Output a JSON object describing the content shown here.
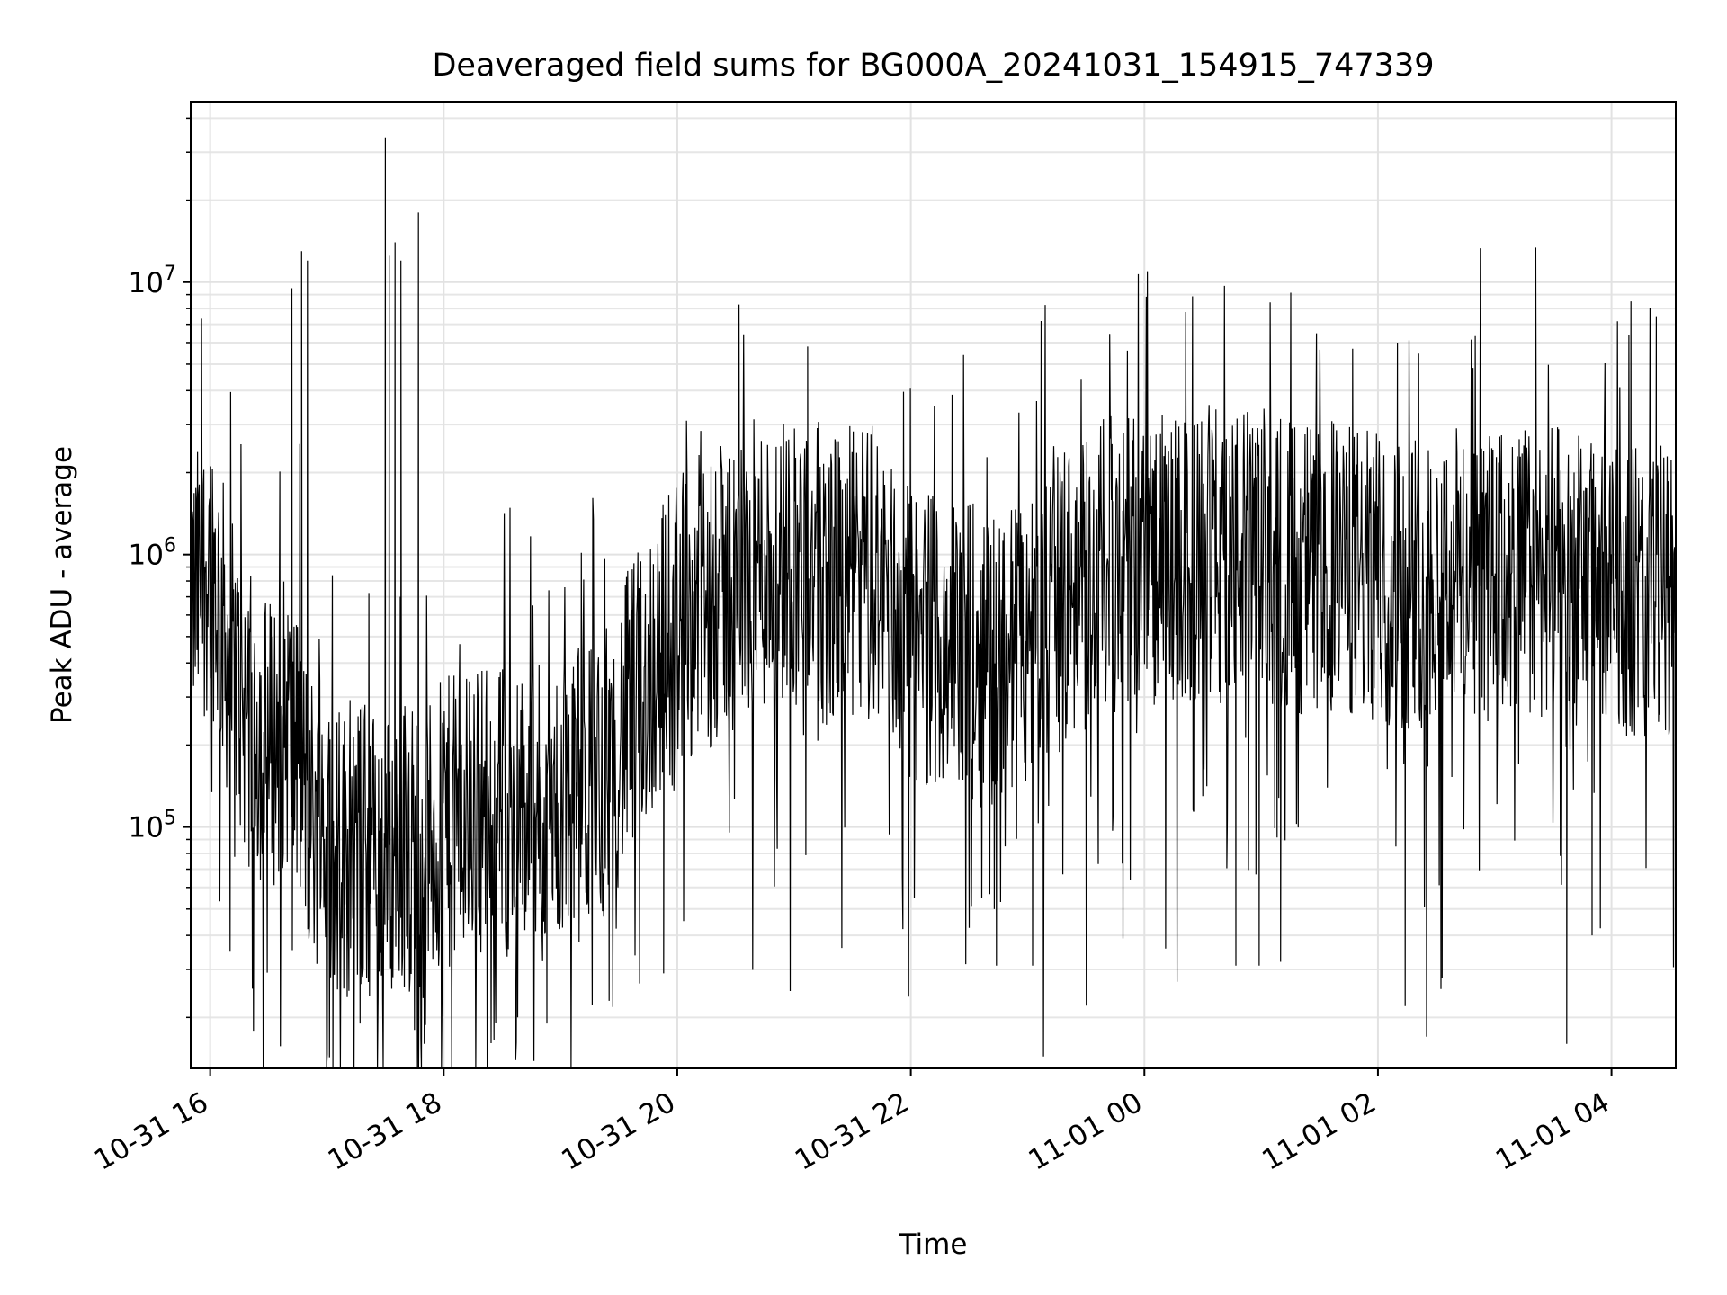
{
  "chart_data": {
    "type": "line",
    "title": "Deaveraged field sums for BG000A_20241031_154915_747339",
    "xlabel": "Time",
    "ylabel": "Peak ADU - average",
    "xlim": [
      "2024-10-31 15:50",
      "2024-11-01 04:33"
    ],
    "ylim": [
      13000,
      46000000
    ],
    "yscale": "log",
    "grid": true,
    "xticks": [
      {
        "value": "2024-10-31 16:00",
        "label": "10-31 16"
      },
      {
        "value": "2024-10-31 18:00",
        "label": "10-31 18"
      },
      {
        "value": "2024-10-31 20:00",
        "label": "10-31 20"
      },
      {
        "value": "2024-10-31 22:00",
        "label": "10-31 22"
      },
      {
        "value": "2024-11-01 00:00",
        "label": "11-01 00"
      },
      {
        "value": "2024-11-01 02:00",
        "label": "11-01 02"
      },
      {
        "value": "2024-11-01 04:00",
        "label": "11-01 04"
      }
    ],
    "yticks": [
      {
        "value": 100000,
        "base": "10",
        "exp": "5"
      },
      {
        "value": 1000000,
        "base": "10",
        "exp": "6"
      },
      {
        "value": 10000000,
        "base": "10",
        "exp": "7"
      }
    ],
    "series": [
      {
        "color": "#000000",
        "points": [
          [
            "2024-10-31 15:50",
            600000
          ],
          [
            "2024-10-31 16:00",
            1000000
          ],
          [
            "2024-10-31 16:10",
            400000
          ],
          [
            "2024-10-31 16:20",
            250000
          ],
          [
            "2024-10-31 16:30",
            200000
          ],
          [
            "2024-10-31 16:40",
            250000
          ],
          [
            "2024-10-31 16:50",
            120000
          ],
          [
            "2024-10-31 17:00",
            90000
          ],
          [
            "2024-10-31 17:10",
            80000
          ],
          [
            "2024-10-31 17:20",
            85000
          ],
          [
            "2024-10-31 17:30",
            75000
          ],
          [
            "2024-10-31 17:40",
            90000
          ],
          [
            "2024-10-31 17:50",
            80000
          ],
          [
            "2024-10-31 18:00",
            100000
          ],
          [
            "2024-10-31 18:20",
            120000
          ],
          [
            "2024-10-31 18:40",
            110000
          ],
          [
            "2024-10-31 19:00",
            120000
          ],
          [
            "2024-10-31 19:20",
            150000
          ],
          [
            "2024-10-31 19:40",
            300000
          ],
          [
            "2024-10-31 20:00",
            600000
          ],
          [
            "2024-10-31 20:20",
            700000
          ],
          [
            "2024-10-31 20:40",
            900000
          ],
          [
            "2024-10-31 21:00",
            1000000
          ],
          [
            "2024-10-31 21:20",
            800000
          ],
          [
            "2024-10-31 21:40",
            900000
          ],
          [
            "2024-10-31 22:00",
            500000
          ],
          [
            "2024-10-31 22:20",
            500000
          ],
          [
            "2024-10-31 22:40",
            400000
          ],
          [
            "2024-10-31 23:00",
            500000
          ],
          [
            "2024-10-31 23:20",
            700000
          ],
          [
            "2024-10-31 23:40",
            900000
          ],
          [
            "2024-11-01 00:00",
            1000000
          ],
          [
            "2024-11-01 00:20",
            900000
          ],
          [
            "2024-11-01 00:40",
            1000000
          ],
          [
            "2024-11-01 01:00",
            1000000
          ],
          [
            "2024-11-01 01:20",
            900000
          ],
          [
            "2024-11-01 01:40",
            900000
          ],
          [
            "2024-11-01 02:00",
            800000
          ],
          [
            "2024-11-01 02:20",
            800000
          ],
          [
            "2024-11-01 02:40",
            900000
          ],
          [
            "2024-11-01 03:00",
            800000
          ],
          [
            "2024-11-01 03:20",
            900000
          ],
          [
            "2024-11-01 03:40",
            800000
          ],
          [
            "2024-11-01 04:00",
            800000
          ],
          [
            "2024-11-01 04:20",
            700000
          ],
          [
            "2024-11-01 04:33",
            800000
          ]
        ],
        "spikes": [
          [
            "2024-10-31 16:42",
            9500000
          ],
          [
            "2024-10-31 16:47",
            13000000
          ],
          [
            "2024-10-31 16:50",
            12000000
          ],
          [
            "2024-10-31 17:30",
            34000000
          ],
          [
            "2024-10-31 17:32",
            12500000
          ],
          [
            "2024-10-31 17:35",
            14000000
          ],
          [
            "2024-10-31 17:38",
            12000000
          ],
          [
            "2024-10-31 17:47",
            18000000
          ],
          [
            "2024-10-31 21:07",
            5800000
          ],
          [
            "2024-11-01 01:47",
            5700000
          ],
          [
            "2024-11-01 02:10",
            6000000
          ],
          [
            "2024-11-01 04:10",
            8500000
          ],
          [
            "2024-11-01 04:23",
            7500000
          ]
        ],
        "dips": [
          [
            "2024-10-31 17:50",
            16000
          ],
          [
            "2024-10-31 17:45",
            18000
          ],
          [
            "2024-10-31 17:17",
            19000
          ],
          [
            "2024-10-31 18:38",
            20000
          ],
          [
            "2024-10-31 18:53",
            19000
          ],
          [
            "2024-10-31 19:25",
            23000
          ],
          [
            "2024-10-31 19:53",
            29000
          ],
          [
            "2024-10-31 20:58",
            25000
          ],
          [
            "2024-10-31 22:44",
            31000
          ],
          [
            "2024-10-31 23:49",
            39000
          ],
          [
            "2024-11-01 00:47",
            31000
          ],
          [
            "2024-11-01 00:59",
            31000
          ],
          [
            "2024-11-01 01:10",
            32000
          ],
          [
            "2024-11-01 02:14",
            22000
          ],
          [
            "2024-11-01 02:25",
            17000
          ],
          [
            "2024-11-01 02:33",
            28000
          ],
          [
            "2024-11-01 03:37",
            16000
          ],
          [
            "2024-11-01 03:50",
            40000
          ]
        ]
      }
    ]
  }
}
